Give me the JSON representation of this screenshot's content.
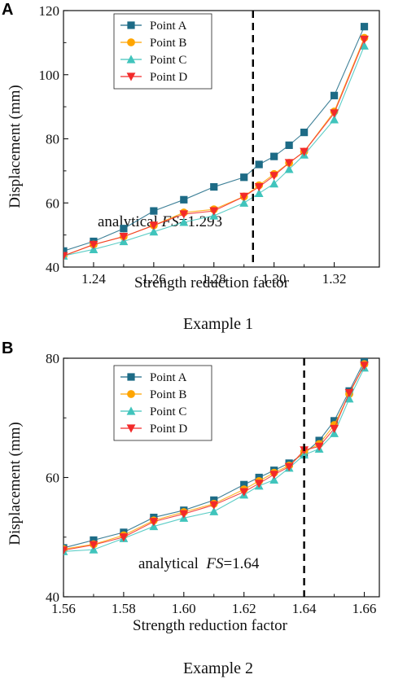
{
  "panels": [
    {
      "letter": "A",
      "caption": "Example 1",
      "annotation_prefix": "analytical ",
      "annotation_fs": "FS",
      "annotation_suffix": "=1.293",
      "chart_data": {
        "type": "line",
        "title": "",
        "xlabel": "Strength reduction factor",
        "ylabel": "Displacement (mm)",
        "xlim": [
          1.23,
          1.335
        ],
        "ylim": [
          40,
          120
        ],
        "xticks": [
          "1.24",
          "1.26",
          "1.28",
          "1.30",
          "1.32"
        ],
        "yticks": [
          "40",
          "60",
          "80",
          "100",
          "120"
        ],
        "xtick_values": [
          1.24,
          1.26,
          1.28,
          1.3,
          1.32
        ],
        "ytick_values": [
          40,
          60,
          80,
          100,
          120
        ],
        "vline": 1.293,
        "legend_position": "top-left",
        "grid": false,
        "series": [
          {
            "name": "Point A",
            "color": "#1d6b86",
            "marker": "square",
            "x": [
              1.23,
              1.24,
              1.25,
              1.26,
              1.27,
              1.28,
              1.29,
              1.295,
              1.3,
              1.305,
              1.31,
              1.32,
              1.33
            ],
            "y": [
              45,
              48,
              52,
              57.5,
              61,
              65,
              68,
              72,
              74.5,
              78,
              82,
              93.5,
              115
            ]
          },
          {
            "name": "Point B",
            "color": "#ffa500",
            "marker": "circle",
            "x": [
              1.23,
              1.24,
              1.25,
              1.26,
              1.27,
              1.28,
              1.29,
              1.295,
              1.3,
              1.305,
              1.31,
              1.32,
              1.33
            ],
            "y": [
              43.5,
              47,
              49.5,
              53,
              57,
              58,
              62,
              65.5,
              69,
              72.5,
              76,
              88.5,
              111.5
            ]
          },
          {
            "name": "Point C",
            "color": "#40c4bc",
            "marker": "triangle-up",
            "x": [
              1.23,
              1.24,
              1.25,
              1.26,
              1.27,
              1.28,
              1.29,
              1.295,
              1.3,
              1.305,
              1.31,
              1.32,
              1.33
            ],
            "y": [
              43.5,
              45.5,
              48,
              51,
              54,
              56,
              60,
              63,
              66,
              70.5,
              75,
              86,
              109
            ]
          },
          {
            "name": "Point D",
            "color": "#f22a2a",
            "marker": "triangle-down",
            "x": [
              1.23,
              1.24,
              1.25,
              1.26,
              1.27,
              1.28,
              1.29,
              1.295,
              1.3,
              1.305,
              1.31,
              1.32,
              1.33
            ],
            "y": [
              43.5,
              47,
              49.5,
              53,
              56.5,
              57.5,
              62,
              65,
              68.5,
              72.5,
              76,
              88,
              111
            ]
          }
        ]
      }
    },
    {
      "letter": "B",
      "caption": "Example 2",
      "annotation_prefix": "analytical  ",
      "annotation_fs": "FS",
      "annotation_suffix": "=1.64",
      "chart_data": {
        "type": "line",
        "title": "",
        "xlabel": "Strength reduction factor",
        "ylabel": "Displacement (mm)",
        "xlim": [
          1.56,
          1.665
        ],
        "ylim": [
          40,
          80
        ],
        "xticks": [
          "1.56",
          "1.58",
          "1.60",
          "1.62",
          "1.64",
          "1.66"
        ],
        "yticks": [
          "40",
          "60",
          "80"
        ],
        "xtick_values": [
          1.56,
          1.58,
          1.6,
          1.62,
          1.64,
          1.66
        ],
        "ytick_values": [
          40,
          60,
          80
        ],
        "vline": 1.64,
        "legend_position": "top-left",
        "grid": false,
        "series": [
          {
            "name": "Point A",
            "color": "#1d6b86",
            "marker": "square",
            "x": [
              1.56,
              1.57,
              1.58,
              1.59,
              1.6,
              1.61,
              1.62,
              1.625,
              1.63,
              1.635,
              1.64,
              1.645,
              1.65,
              1.655,
              1.66
            ],
            "y": [
              48.2,
              49.5,
              50.8,
              53.3,
              54.5,
              56.2,
              58.8,
              60,
              61.2,
              62.4,
              64,
              66.2,
              69.5,
              74.5,
              79.5
            ]
          },
          {
            "name": "Point B",
            "color": "#ffa500",
            "marker": "circle",
            "x": [
              1.56,
              1.57,
              1.58,
              1.59,
              1.6,
              1.61,
              1.62,
              1.625,
              1.63,
              1.635,
              1.64,
              1.645,
              1.65,
              1.655,
              1.66
            ],
            "y": [
              48,
              48.8,
              50.3,
              52.8,
              54.2,
              55.6,
              58,
              59.4,
              60.8,
              62,
              64.3,
              65.6,
              68.8,
              74,
              79
            ]
          },
          {
            "name": "Point C",
            "color": "#40c4bc",
            "marker": "triangle-up",
            "x": [
              1.56,
              1.57,
              1.58,
              1.59,
              1.6,
              1.61,
              1.62,
              1.625,
              1.63,
              1.635,
              1.64,
              1.645,
              1.65,
              1.655,
              1.66
            ],
            "y": [
              47.6,
              47.9,
              49.8,
              51.8,
              53.2,
              54.3,
              57.1,
              58.6,
              59.6,
              61.6,
              63.8,
              64.8,
              67.4,
              73.2,
              78.4
            ]
          },
          {
            "name": "Point D",
            "color": "#f22a2a",
            "marker": "triangle-down",
            "x": [
              1.56,
              1.57,
              1.58,
              1.59,
              1.6,
              1.61,
              1.62,
              1.625,
              1.63,
              1.635,
              1.64,
              1.645,
              1.65,
              1.655,
              1.66
            ],
            "y": [
              47.8,
              48.7,
              50,
              52.6,
              53.9,
              55.4,
              57.6,
              59,
              60.5,
              61.8,
              64.6,
              65.2,
              68.2,
              74.2,
              78.8
            ]
          }
        ]
      }
    }
  ]
}
